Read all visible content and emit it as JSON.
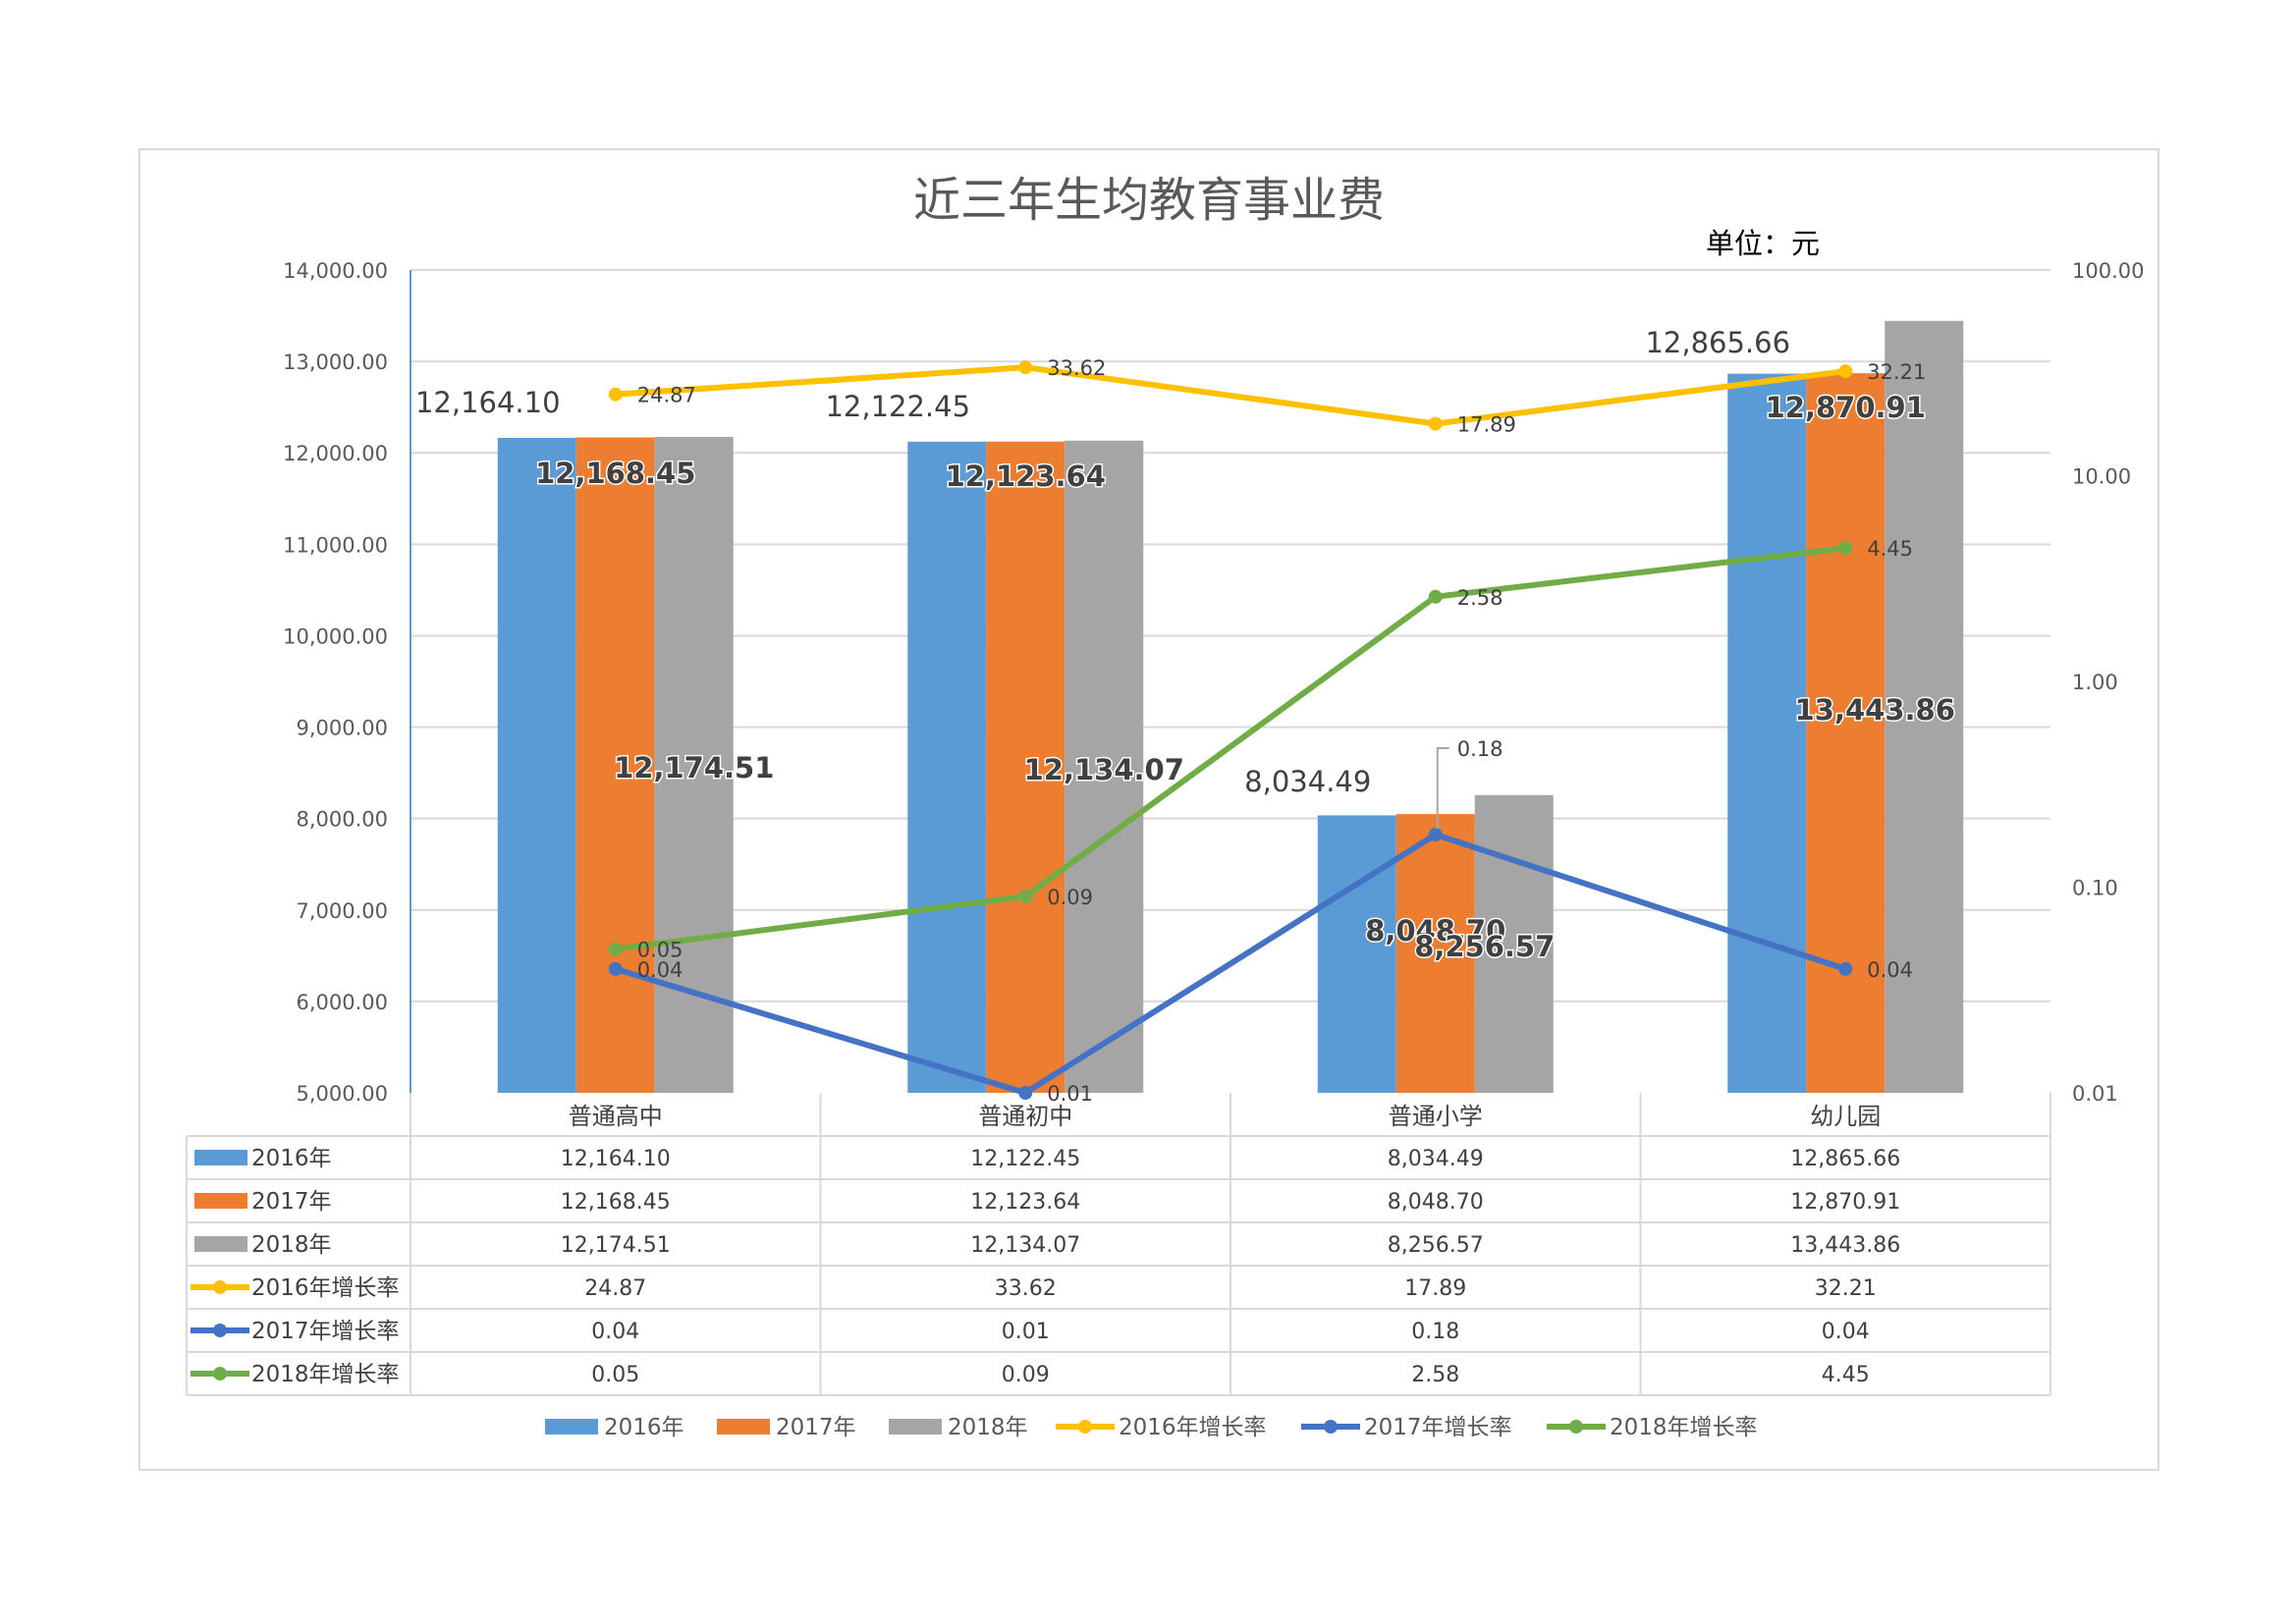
{
  "chart_data": {
    "type": "bar",
    "title": "近三年生均教育事业费",
    "unit_label": "单位：元",
    "categories": [
      "普通高中",
      "普通初中",
      "普通小学",
      "幼儿园"
    ],
    "y_left": {
      "min": 5000,
      "max": 14000,
      "step": 1000,
      "ticks": [
        "14,000.00",
        "13,000.00",
        "12,000.00",
        "11,000.00",
        "10,000.00",
        "9,000.00",
        "8,000.00",
        "7,000.00",
        "6,000.00",
        "5,000.00"
      ]
    },
    "y_right": {
      "scale": "log",
      "min": 0.01,
      "max": 100,
      "ticks": [
        "100.00",
        "10.00",
        "1.00",
        "0.10",
        "0.01"
      ]
    },
    "grid": true,
    "legend_position": "bottom",
    "bar_series": [
      {
        "name": "2016年",
        "color": "#5B9BD5",
        "values": [
          12164.1,
          12122.45,
          8034.49,
          12865.66
        ],
        "labels": [
          "12,164.10",
          "12,122.45",
          "8,034.49",
          "12,865.66"
        ]
      },
      {
        "name": "2017年",
        "color": "#ED7D31",
        "values": [
          12168.45,
          12123.64,
          8048.7,
          12870.91
        ],
        "labels": [
          "12,168.45",
          "12,123.64",
          "8,048.70",
          "12,870.91"
        ]
      },
      {
        "name": "2018年",
        "color": "#A5A5A5",
        "values": [
          12174.51,
          12134.07,
          8256.57,
          13443.86
        ],
        "labels": [
          "12,174.51",
          "12,134.07",
          "8,256.57",
          "13,443.86"
        ]
      }
    ],
    "line_series": [
      {
        "name": "2016年增长率",
        "color": "#FFC000",
        "values": [
          24.87,
          33.62,
          17.89,
          32.21
        ],
        "labels": [
          "24.87",
          "33.62",
          "17.89",
          "32.21"
        ]
      },
      {
        "name": "2017年增长率",
        "color": "#4472C4",
        "values": [
          0.04,
          0.01,
          0.18,
          0.04
        ],
        "labels": [
          "0.04",
          "0.01",
          "0.18",
          "0.04"
        ]
      },
      {
        "name": "2018年增长率",
        "color": "#70AD47",
        "values": [
          0.05,
          0.09,
          2.58,
          4.45
        ],
        "labels": [
          "0.05",
          "0.09",
          "2.58",
          "4.45"
        ]
      }
    ]
  }
}
